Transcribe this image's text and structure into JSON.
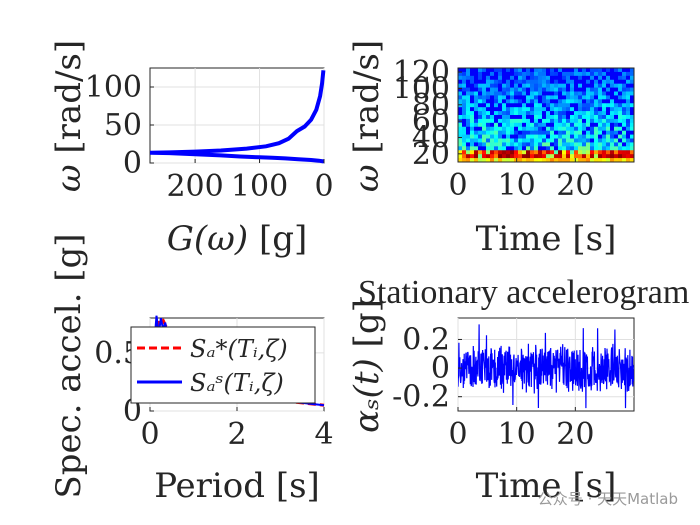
{
  "watermark": "公众号 · 天天Matlab",
  "panels": {
    "psd": {
      "xlabel_symbol": "G(ω)",
      "xlabel_rest": " [g]",
      "ylabel_symbol": "ω",
      "ylabel_rest": " [rad/s]"
    },
    "scalogram": {
      "xlabel": "Time [s]",
      "ylabel_symbol": "ω",
      "ylabel_rest": " [rad/s]"
    },
    "spectrum": {
      "xlabel": "Period [s]",
      "ylabel": "Spec. accel. [g]",
      "legend": [
        "Sₐ*(Tᵢ,ζ)",
        "Sₐˢ(Tᵢ,ζ)"
      ]
    },
    "accelerogram": {
      "title": "Stationary accelerogram",
      "xlabel": "Time [s]",
      "ylabel_symbol": "αₛ(t)",
      "ylabel_rest": " [g]"
    }
  },
  "chart_data": [
    {
      "type": "line",
      "name": "psd",
      "x_reversed": true,
      "xlim": [
        0,
        270
      ],
      "ylim": [
        0,
        125
      ],
      "x_ticks": [
        200,
        100,
        0
      ],
      "x_tick_labels": [
        "200",
        "100",
        "0"
      ],
      "y_ticks": [
        0,
        50,
        100
      ],
      "y_tick_labels": [
        "0",
        "50",
        "100"
      ],
      "grid": true,
      "color": "#0000ff",
      "series": [
        {
          "x": [
            0,
            8,
            20,
            40,
            60,
            80,
            100,
            130,
            160,
            200,
            240,
            270
          ],
          "y": [
            2,
            3,
            4,
            5,
            6,
            7,
            7.5,
            8.5,
            10,
            11.5,
            13,
            13.5
          ]
        },
        {
          "x": [
            270,
            240,
            200,
            160,
            120,
            90,
            70,
            55,
            42,
            30,
            20,
            12,
            6,
            3,
            1
          ],
          "y": [
            13.5,
            14,
            15,
            16.5,
            19,
            22,
            26,
            32,
            42,
            48,
            57,
            70,
            88,
            105,
            122
          ]
        }
      ]
    },
    {
      "type": "heatmap",
      "name": "scalogram",
      "xlim": [
        0,
        30
      ],
      "ylim": [
        10,
        125
      ],
      "x_ticks": [
        0,
        10,
        20
      ],
      "x_tick_labels": [
        "0",
        "10",
        "20"
      ],
      "y_ticks": [
        20,
        40,
        60,
        80,
        100,
        120
      ],
      "y_tick_labels": [
        "20",
        "40",
        "60",
        "80",
        "100",
        "120"
      ],
      "colormap": "jet",
      "description_bands": "strongest energy near 15-20 rad/s"
    },
    {
      "type": "line",
      "name": "response-spectrum",
      "xlim": [
        0,
        4
      ],
      "ylim": [
        0,
        0.8
      ],
      "x_ticks": [
        0,
        2,
        4
      ],
      "x_tick_labels": [
        "0",
        "2",
        "4"
      ],
      "y_ticks": [
        0,
        0.5
      ],
      "y_tick_labels": [
        "0",
        "0.5"
      ],
      "grid": true,
      "series": [
        {
          "name": "Sₐ*(Tᵢ,ζ)",
          "color": "#ff0000",
          "x": [
            0,
            0.1,
            0.2,
            0.3,
            0.4,
            0.6,
            1.0,
            1.5,
            2.0,
            2.5,
            3.0,
            3.5,
            4.0
          ],
          "y": [
            0.3,
            0.62,
            0.78,
            0.78,
            0.7,
            0.55,
            0.36,
            0.24,
            0.17,
            0.12,
            0.09,
            0.07,
            0.05
          ]
        },
        {
          "name": "Sₐˢ(Tᵢ,ζ)",
          "color": "#0000ff",
          "x": [
            0,
            0.05,
            0.1,
            0.15,
            0.2,
            0.25,
            0.3,
            0.35,
            0.4,
            0.5,
            0.6,
            0.8,
            1.0,
            1.5,
            2.0,
            2.5,
            3.0,
            3.5,
            4.0
          ],
          "y": [
            0.3,
            0.68,
            0.58,
            0.82,
            0.66,
            0.8,
            0.7,
            0.76,
            0.66,
            0.58,
            0.52,
            0.44,
            0.36,
            0.25,
            0.17,
            0.12,
            0.09,
            0.07,
            0.05
          ]
        }
      ]
    },
    {
      "type": "line",
      "name": "accelerogram",
      "title": "Stationary accelerogram",
      "xlim": [
        0,
        30
      ],
      "ylim": [
        -0.3,
        0.35
      ],
      "x_ticks": [
        0,
        10,
        20
      ],
      "x_tick_labels": [
        "0",
        "10",
        "20"
      ],
      "y_ticks": [
        -0.2,
        0,
        0.2
      ],
      "y_tick_labels": [
        "-0.2",
        "0",
        "0.2"
      ],
      "grid": true,
      "color": "#0000ff",
      "amplitude_range": [
        -0.28,
        0.31
      ],
      "duration": 30
    }
  ]
}
